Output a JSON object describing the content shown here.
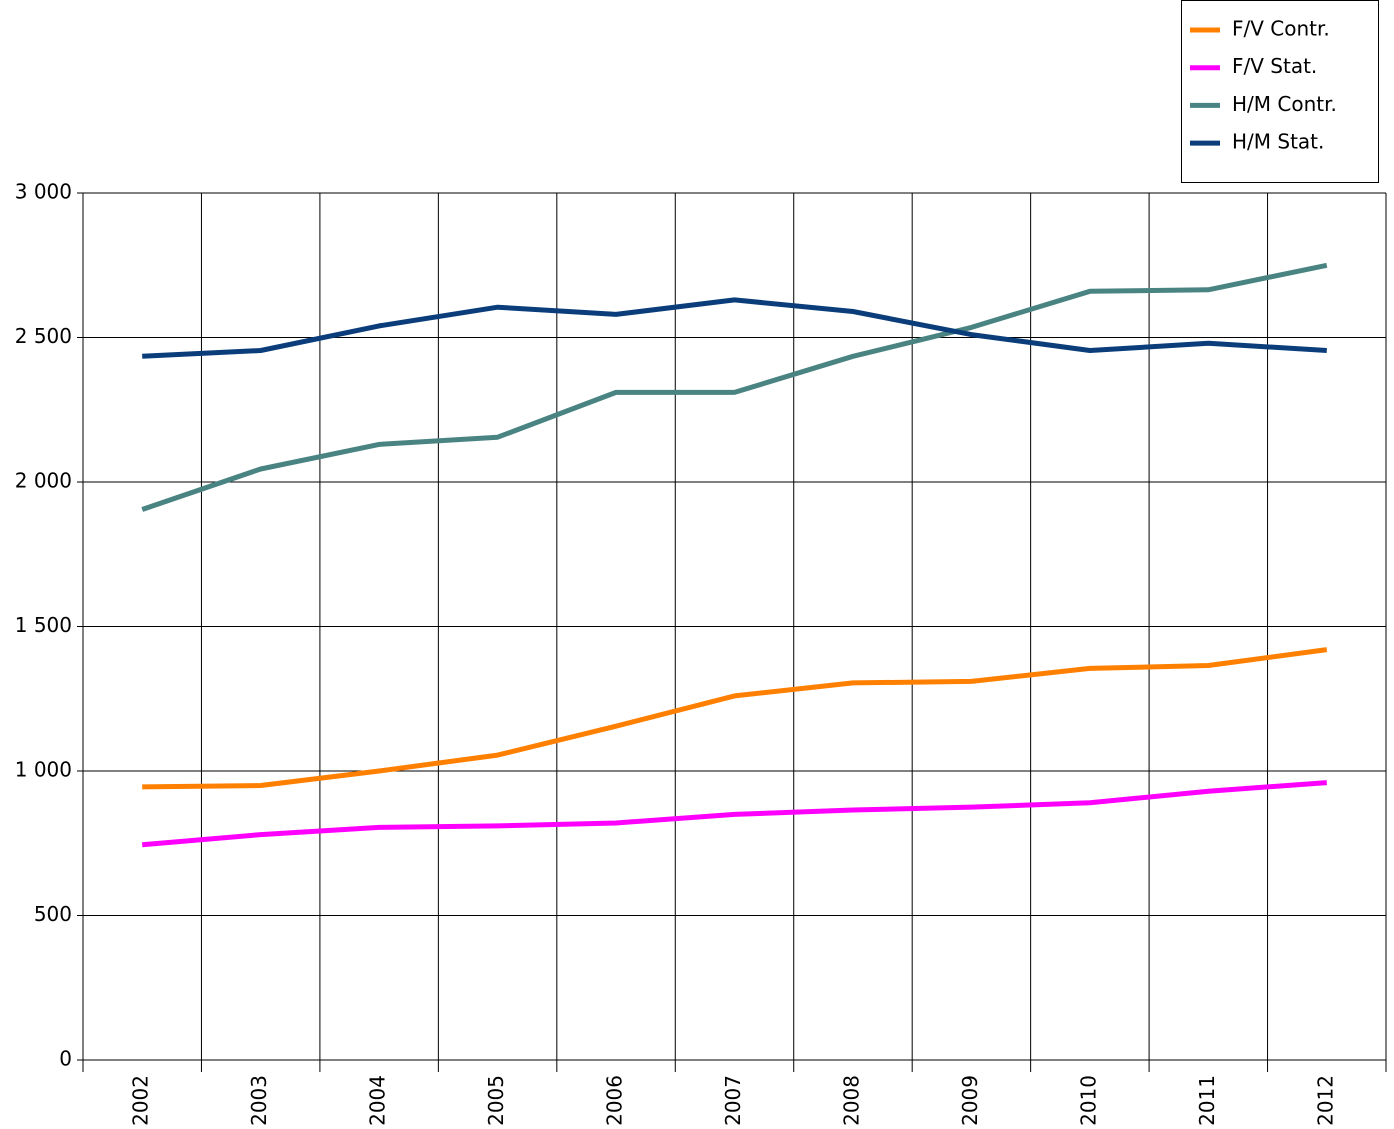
{
  "chart_data": {
    "type": "line",
    "categories": [
      "2002",
      "2003",
      "2004",
      "2005",
      "2006",
      "2007",
      "2008",
      "2009",
      "2010",
      "2011",
      "2012"
    ],
    "series": [
      {
        "name": "F/V Contr.",
        "color": "#ff8000",
        "values": [
          945,
          950,
          1000,
          1055,
          1155,
          1260,
          1305,
          1310,
          1355,
          1365,
          1420
        ]
      },
      {
        "name": "F/V Stat.",
        "color": "#ff00ff",
        "values": [
          745,
          780,
          805,
          810,
          820,
          850,
          865,
          875,
          890,
          930,
          960
        ]
      },
      {
        "name": "H/M Contr.",
        "color": "#4a8482",
        "values": [
          1905,
          2045,
          2130,
          2155,
          2310,
          2310,
          2435,
          2535,
          2660,
          2665,
          2750
        ]
      },
      {
        "name": "H/M Stat.",
        "color": "#0a3d7a",
        "values": [
          2435,
          2455,
          2540,
          2605,
          2580,
          2630,
          2590,
          2510,
          2455,
          2480,
          2455
        ]
      }
    ],
    "ylim": [
      0,
      3000
    ],
    "yticks": [
      0,
      500,
      {
        "value": 1000,
        "label": "1 000"
      },
      {
        "value": 1500,
        "label": "1 500"
      },
      {
        "value": 2000,
        "label": "2 000"
      },
      {
        "value": 2500,
        "label": "2 500"
      },
      {
        "value": 3000,
        "label": "3 000"
      }
    ],
    "grid": true,
    "legend": "top-right"
  }
}
